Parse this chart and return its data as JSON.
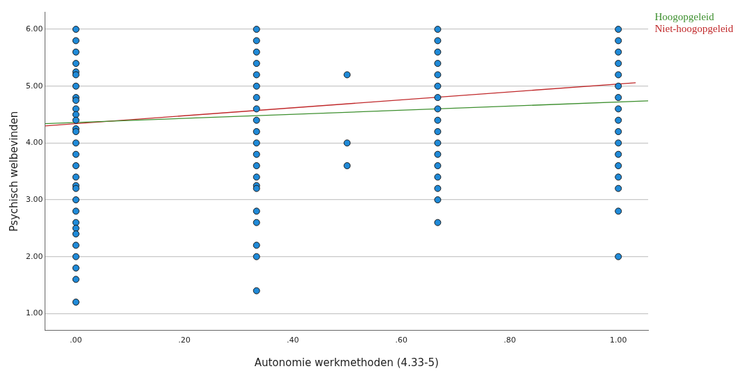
{
  "chart_data": {
    "type": "scatter",
    "xlabel": "Autonomie werkmethoden (4.33-5)",
    "ylabel": "Psychisch welbevinden",
    "xlim": [
      -0.057,
      1.055
    ],
    "ylim": [
      0.7,
      6.3
    ],
    "xticks": [
      {
        "value": 0,
        "label": ".00"
      },
      {
        "value": 0.2,
        "label": ".20"
      },
      {
        "value": 0.4,
        "label": ".40"
      },
      {
        "value": 0.6,
        "label": ".60"
      },
      {
        "value": 0.8,
        "label": ".80"
      },
      {
        "value": 1,
        "label": "1.00"
      }
    ],
    "yticks": [
      {
        "value": 1,
        "label": "1.00"
      },
      {
        "value": 2,
        "label": "2.00"
      },
      {
        "value": 3,
        "label": "3.00"
      },
      {
        "value": 4,
        "label": "4.00"
      },
      {
        "value": 5,
        "label": "5.00"
      },
      {
        "value": 6,
        "label": "6.00"
      }
    ],
    "grid": "y",
    "legend": "top right",
    "marker": "circle",
    "series": [
      {
        "color": "#1f8ad8",
        "x": [
          0,
          0,
          0,
          0,
          0,
          0,
          0,
          0,
          0,
          0,
          0,
          0,
          0,
          0,
          0,
          0,
          0,
          0,
          0,
          0,
          0,
          0,
          0,
          0,
          0,
          0,
          0,
          0,
          0,
          0,
          0.333,
          0.333,
          0.333,
          0.333,
          0.333,
          0.333,
          0.333,
          0.333,
          0.333,
          0.333,
          0.333,
          0.333,
          0.333,
          0.333,
          0.333,
          0.333,
          0.333,
          0.333,
          0.333,
          0.333,
          0.333,
          0.5,
          0.5,
          0.5,
          0.667,
          0.667,
          0.667,
          0.667,
          0.667,
          0.667,
          0.667,
          0.667,
          0.667,
          0.667,
          0.667,
          0.667,
          0.667,
          0.667,
          0.667,
          0.667,
          0.667,
          1,
          1,
          1,
          1,
          1,
          1,
          1,
          1,
          1,
          1,
          1,
          1,
          1,
          1,
          1,
          1,
          1
        ],
        "values": [
          6.0,
          5.8,
          5.6,
          5.4,
          5.25,
          5.2,
          5.0,
          4.8,
          4.75,
          4.6,
          4.5,
          4.4,
          4.25,
          4.2,
          4.0,
          3.8,
          3.6,
          3.4,
          3.25,
          3.2,
          3.0,
          2.8,
          2.6,
          2.5,
          2.4,
          2.2,
          2.0,
          1.8,
          1.6,
          1.2,
          6.0,
          5.8,
          5.6,
          5.4,
          5.2,
          5.0,
          4.8,
          4.6,
          4.4,
          4.2,
          4.0,
          3.8,
          3.6,
          3.4,
          3.25,
          3.2,
          2.8,
          2.6,
          2.2,
          2.0,
          1.4,
          5.2,
          4.0,
          3.6,
          6.0,
          5.8,
          5.6,
          5.4,
          5.2,
          5.0,
          4.8,
          4.6,
          4.4,
          4.2,
          4.0,
          3.8,
          3.6,
          3.4,
          3.2,
          3.0,
          2.6,
          6.0,
          5.8,
          5.6,
          5.4,
          5.2,
          5.0,
          4.8,
          4.6,
          4.4,
          4.2,
          4.0,
          3.8,
          3.6,
          3.4,
          3.2,
          2.8,
          2.0
        ]
      },
      {
        "type": "line",
        "name": "Hoogopgeleid",
        "color": "#3d8f2e",
        "x": [
          -0.057,
          1.055
        ],
        "values": [
          4.34,
          4.74
        ],
        "marker": "none",
        "line_style": "solid"
      },
      {
        "type": "line",
        "name": "Niet-hoogopgeleid",
        "color": "#c0282a",
        "x": [
          -0.057,
          1.032
        ],
        "values": [
          4.3,
          5.06
        ],
        "marker": "none",
        "line_style": "solid"
      }
    ]
  }
}
